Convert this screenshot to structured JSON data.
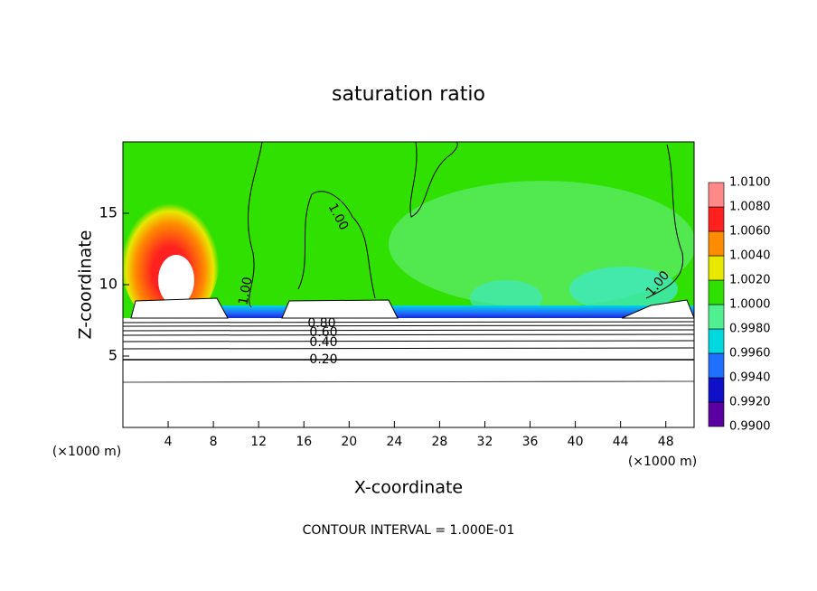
{
  "chart_data": {
    "type": "contour",
    "title": "saturation ratio",
    "x_label": "X-coordinate",
    "y_label": "Z-coordinate",
    "axis_unit": "(×1000 m)",
    "xlim": [
      0,
      50.5
    ],
    "ylim": [
      0,
      20
    ],
    "xticks": [
      4,
      8,
      12,
      16,
      20,
      24,
      28,
      32,
      36,
      40,
      44,
      48
    ],
    "yticks": [
      5,
      10,
      15
    ],
    "colorbar": {
      "levels": [
        {
          "value": 0.99,
          "label": "0.9900"
        },
        {
          "value": 0.992,
          "label": "0.9920"
        },
        {
          "value": 0.994,
          "label": "0.9940"
        },
        {
          "value": 0.996,
          "label": "0.9960"
        },
        {
          "value": 0.998,
          "label": "0.9980"
        },
        {
          "value": 1.0,
          "label": "1.0000"
        },
        {
          "value": 1.002,
          "label": "1.0020"
        },
        {
          "value": 1.004,
          "label": "1.0040"
        },
        {
          "value": 1.006,
          "label": "1.0060"
        },
        {
          "value": 1.008,
          "label": "1.0080"
        },
        {
          "value": 1.01,
          "label": "1.0100"
        }
      ],
      "colors": [
        "#5a00a0",
        "#1010c8",
        "#2070ff",
        "#00d8e0",
        "#50f090",
        "#30e000",
        "#e8e800",
        "#ff8c00",
        "#ff2020",
        "#ff8888"
      ]
    },
    "contour_labels": [
      "1.00",
      "1.00",
      "1.00",
      "0.80",
      "0.60",
      "0.40",
      "0.20"
    ],
    "footer": "CONTOUR INTERVAL = 1.000E-01"
  }
}
